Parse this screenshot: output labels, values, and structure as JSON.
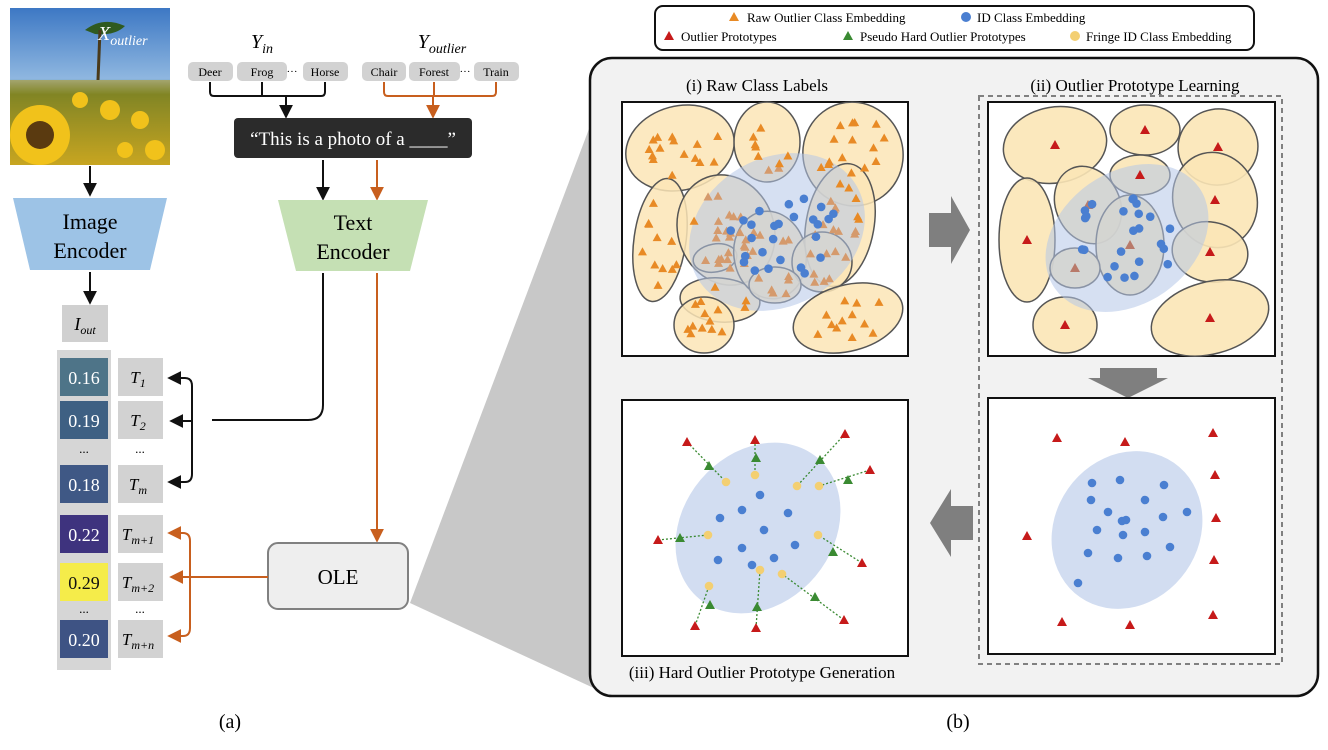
{
  "left_panel": {
    "image_label": "X",
    "image_label_sub": "outlier",
    "image_encoder": [
      "Image",
      "Encoder"
    ],
    "text_encoder": [
      "Text",
      "Encoder"
    ],
    "y_in_label": "Y",
    "y_in_sub": "in",
    "y_out_label": "Y",
    "y_out_sub": "outlier",
    "in_classes": [
      "Deer",
      "Frog",
      "Horse"
    ],
    "out_classes": [
      "Chair",
      "Forest",
      "Train"
    ],
    "ellipsis": "···",
    "prompt": "“This is a photo of a ____”",
    "i_out_label": "I",
    "i_out_sub": "out",
    "scores": [
      "0.16",
      "0.19",
      "...",
      "0.18",
      "0.22",
      "0.29",
      "...",
      "0.20"
    ],
    "score_colors": [
      "#4e7488",
      "#3e6083",
      "#ffffff",
      "#3f5885",
      "#3e337e",
      "#f5ec4a",
      "#ffffff",
      "#3e5384"
    ],
    "t_main": "T",
    "t_subs": [
      "1",
      "2",
      "...",
      "m",
      "m+1",
      "m+2",
      "...",
      "m+n"
    ],
    "ole_label": "OLE",
    "caption": "(a)",
    "colors": {
      "black_arrow": "#111111",
      "orange_arrow": "#c85f1e",
      "image_encoder": "#9dc3e6",
      "text_encoder": "#c5e0b4",
      "prompt_bg": "#2b2b2b"
    }
  },
  "legend": {
    "items": [
      {
        "label": "Raw Outlier Class Embedding",
        "marker": "triangle",
        "color": "#e88a25"
      },
      {
        "label": "ID Class Embedding",
        "marker": "circle",
        "color": "#4a7fd1"
      },
      {
        "label": "Outlier Prototypes",
        "marker": "triangle",
        "color": "#c61a1a"
      },
      {
        "label": "Pseudo Hard Outlier Prototypes",
        "marker": "triangle",
        "color": "#3a8a32"
      },
      {
        "label": "Fringe ID Class Embedding",
        "marker": "circle",
        "color": "#f3cf72"
      }
    ]
  },
  "right_panel": {
    "title_i": "(i) Raw Class Labels",
    "title_ii": "(ii) Outlier Prototype Learning",
    "title_iii": "(iii) Hard Outlier Prototype Generation",
    "caption": "(b)",
    "colors": {
      "panel_bg": "#f2f2f2",
      "ellipse_fill": "#fbe5b6",
      "id_region": "#b4c6e7",
      "arrow_gray": "#7f7f7f",
      "zoom_wedge": "#c8c8c8"
    }
  }
}
